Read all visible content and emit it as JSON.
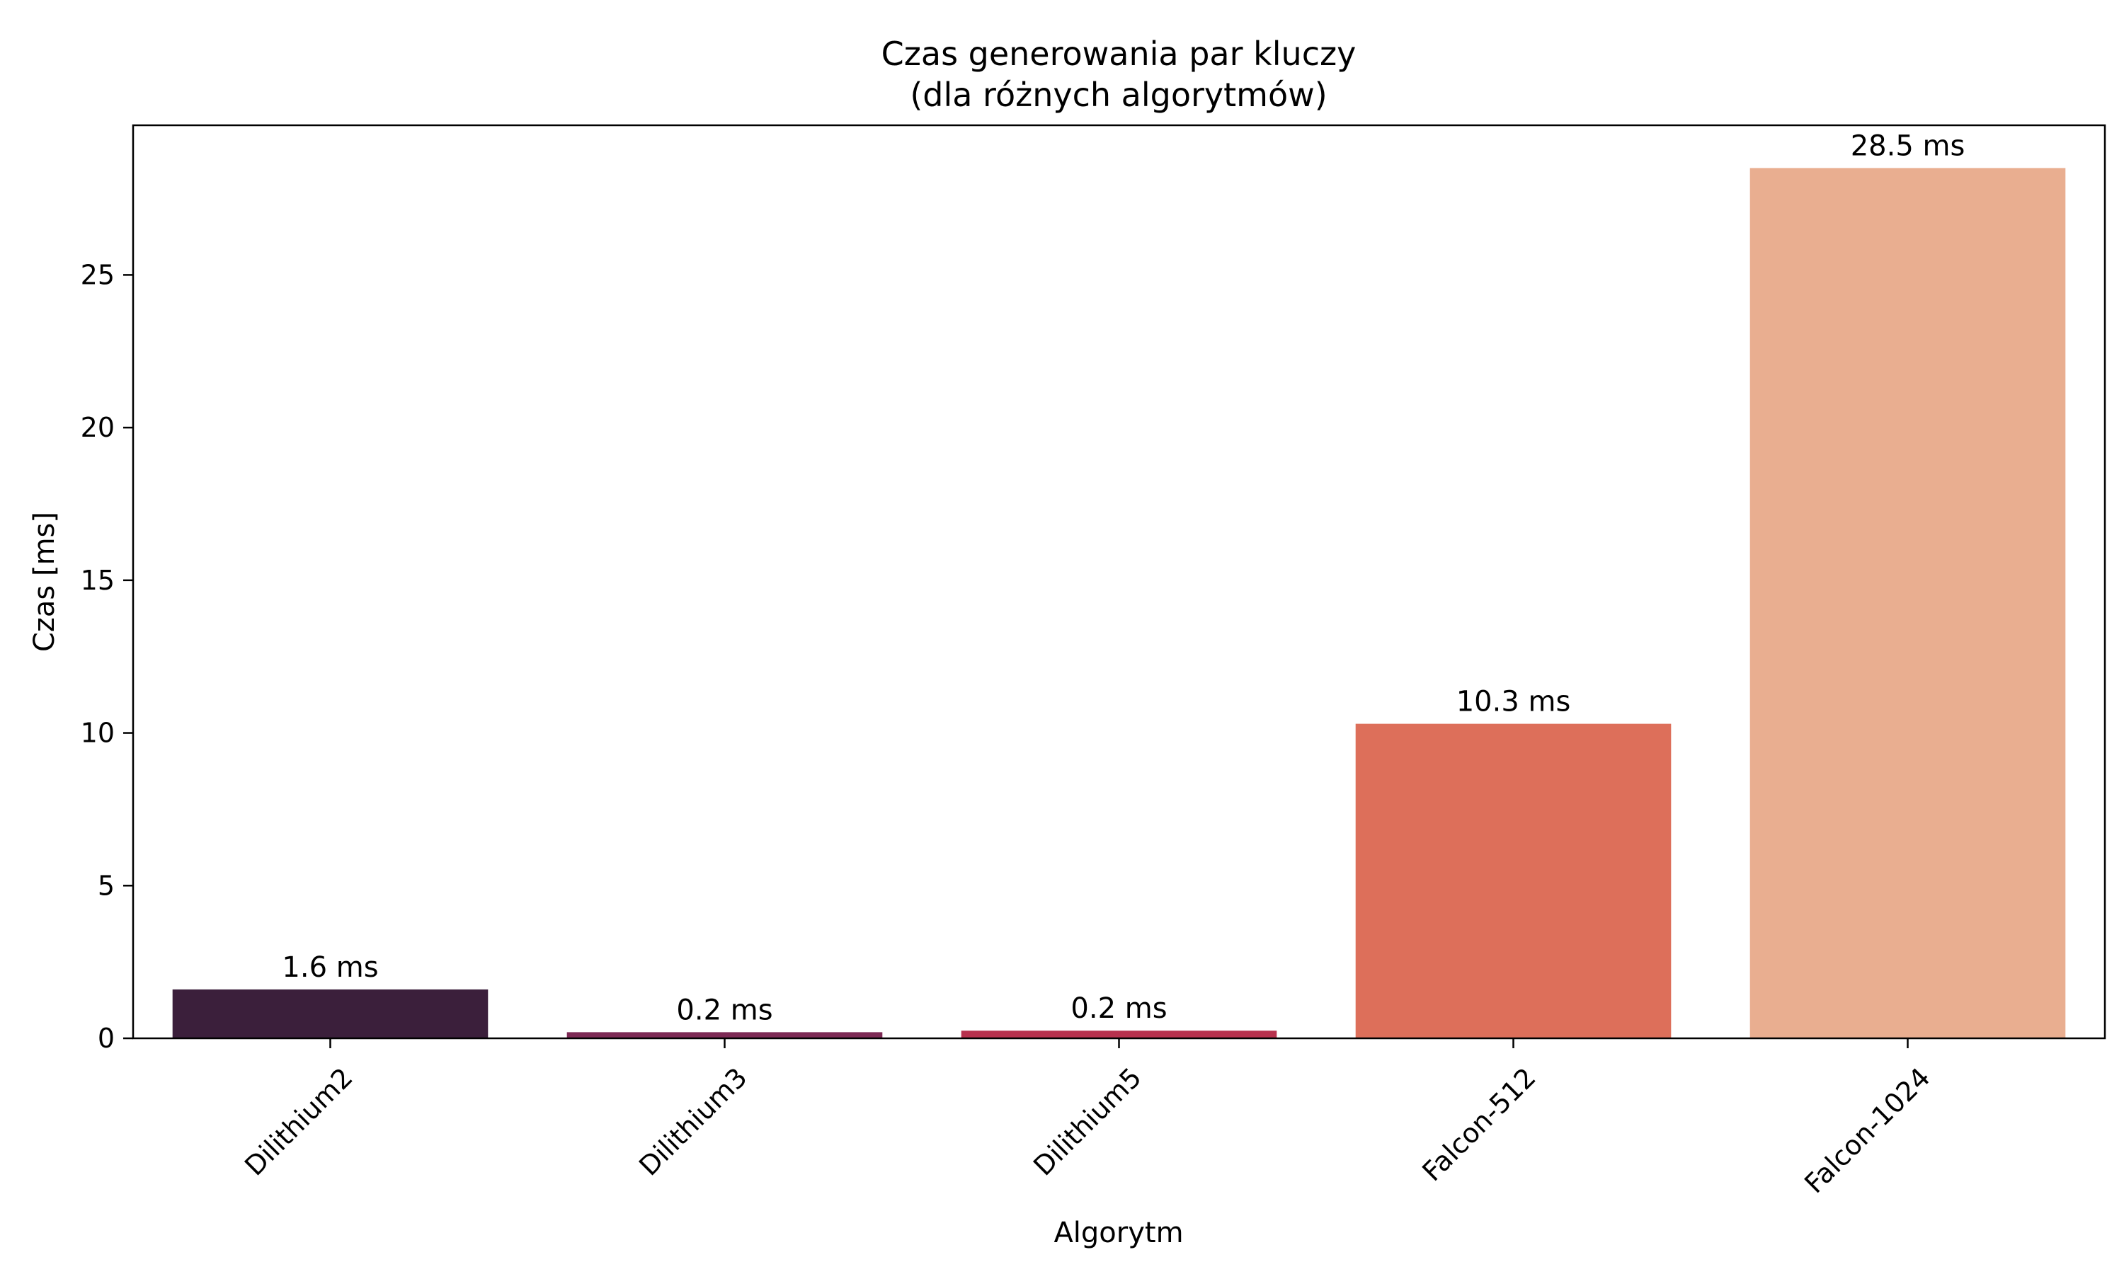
{
  "chart_data": {
    "type": "bar",
    "title": "Czas generowania par kluczy",
    "subtitle": "(dla różnych algorytmów)",
    "xlabel": "Algorytm",
    "ylabel": "Czas [ms]",
    "categories": [
      "Dilithium2",
      "Dilithium3",
      "Dilithium5",
      "Falcon-512",
      "Falcon-1024"
    ],
    "values": [
      1.6,
      0.2,
      0.25,
      10.3,
      28.5
    ],
    "data_labels": [
      "1.6 ms",
      "0.2 ms",
      "0.2 ms",
      "10.3 ms",
      "28.5 ms"
    ],
    "colors": [
      "#3b1f3b",
      "#7d2a55",
      "#b8324e",
      "#dd6f5a",
      "#e9ae90"
    ],
    "ylim": [
      0,
      29.9
    ],
    "yticks": [
      0,
      5,
      10,
      15,
      20,
      25
    ],
    "grid": false,
    "legend": "none"
  }
}
